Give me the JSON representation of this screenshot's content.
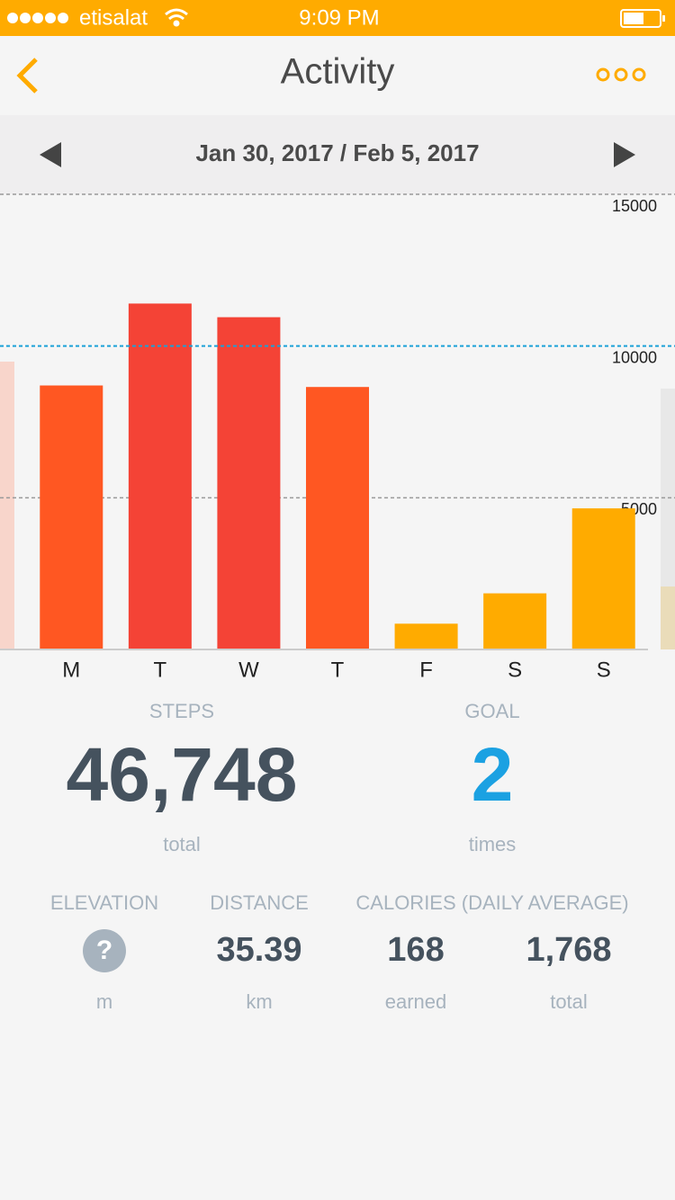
{
  "status_bar": {
    "carrier": "etisalat",
    "time": "9:09 PM"
  },
  "header": {
    "title": "Activity"
  },
  "date_range": "Jan 30, 2017 / Feb 5, 2017",
  "chart_data": {
    "type": "bar",
    "categories": [
      "M",
      "T",
      "W",
      "T",
      "F",
      "S",
      "S"
    ],
    "values": [
      8700,
      11400,
      10950,
      8650,
      850,
      1850,
      4650
    ],
    "colors": [
      "#ff5722",
      "#f44336",
      "#f44336",
      "#ff5722",
      "#ffab00",
      "#ffab00",
      "#ffab00"
    ],
    "ylim": [
      0,
      15000
    ],
    "yticks": [
      5000,
      10000,
      15000
    ],
    "goal": 10000,
    "goal_color": "#1ba1d8",
    "grid": true
  },
  "summary": {
    "steps": {
      "label": "STEPS",
      "value": "46,748",
      "unit": "total"
    },
    "goal": {
      "label": "GOAL",
      "value": "2",
      "unit": "times"
    }
  },
  "details": {
    "elevation": {
      "label": "ELEVATION",
      "value": "?",
      "unit": "m"
    },
    "distance": {
      "label": "DISTANCE",
      "value": "35.39",
      "unit": "km"
    },
    "calories": {
      "label": "CALORIES (DAILY AVERAGE)",
      "earned": {
        "value": "168",
        "unit": "earned"
      },
      "total": {
        "value": "1,768",
        "unit": "total"
      }
    }
  }
}
